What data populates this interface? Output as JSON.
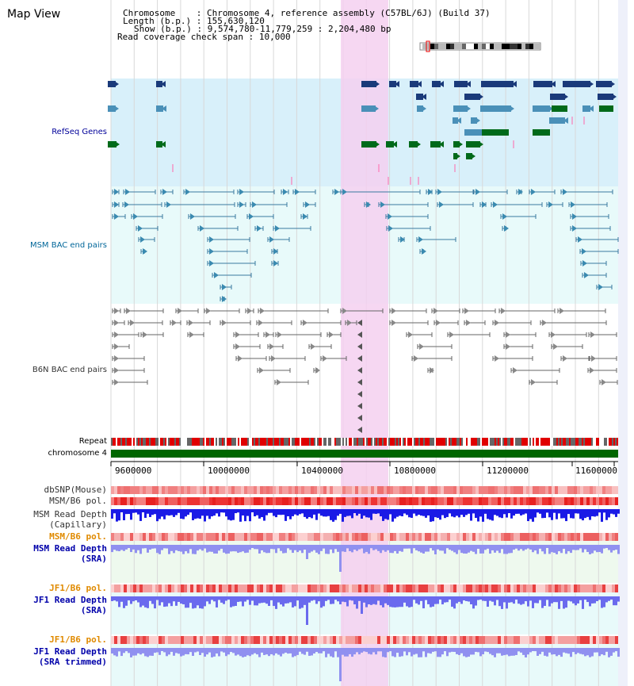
{
  "page_title": "Map View",
  "header": {
    "chromosome_label": "Chromosome",
    "chromosome_value": "Chromosome 4, reference assembly (C57BL/6J) (Build 37)",
    "length_label": "Length (b.p.)",
    "length_value": "155,630,120",
    "show_label": "Show (b.p.)",
    "show_value": "9,574,780-11,779,259 : 2,204,480 bp",
    "span_label": "Read coverage check span",
    "span_value": "10,000"
  },
  "tracks": {
    "refseq_genes": "RefSeq Genes",
    "msm_bac": "MSM BAC end pairs",
    "b6n_bac": "B6N BAC end pairs",
    "repeat": "Repeat",
    "chromosome": "chromosome 4",
    "dbsnp": "dbSNP(Mouse)",
    "msm_b6_pol": "MSM/B6 pol.",
    "msm_read_depth_cap_1": "MSM Read Depth",
    "msm_read_depth_cap_2": "(Capillary)",
    "msm_b6_pol_2": "MSM/B6 pol.",
    "msm_read_depth_sra_1": "MSM Read Depth",
    "msm_read_depth_sra_2": "(SRA)",
    "jf1_b6_pol": "JF1/B6 pol.",
    "jf1_read_depth_sra_1": "JF1 Read Depth",
    "jf1_read_depth_sra_2": "(SRA)",
    "jf1_b6_pol_2": "JF1/B6 pol.",
    "jf1_read_depth_trim_1": "JF1 Read Depth",
    "jf1_read_depth_trim_2": "(SRA trimmed)"
  },
  "axis_ticks": [
    "9600000",
    "10000000",
    "10400000",
    "10800000",
    "11200000",
    "11600000"
  ],
  "colors": {
    "refseq_bg": "#d8f0fa",
    "bac_bg": "#e8fafa",
    "highlight": "#f5d0f0",
    "refseq_label": "#000099",
    "msm_label": "#006699",
    "b6n_label": "#333333",
    "orange_label": "#e08a00",
    "blue_label": "#0000aa",
    "chromosome_bar": "#006600"
  }
}
